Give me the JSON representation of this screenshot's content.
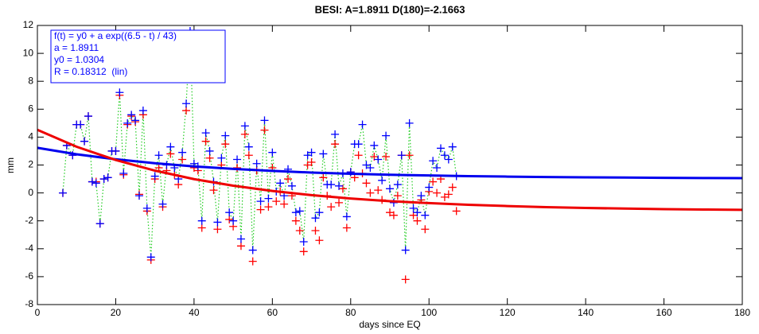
{
  "chart_data": {
    "type": "scatter",
    "title": "BESI: A=1.8911  D(180)=-2.1663",
    "x_label": "days since EQ",
    "y_label": "mm",
    "xlim": [
      0,
      180
    ],
    "xticks": [
      0,
      20,
      40,
      60,
      80,
      100,
      120,
      140,
      160,
      180
    ],
    "ylim": [
      -8,
      12
    ],
    "yticks": [
      -8,
      -6,
      -4,
      -2,
      0,
      2,
      4,
      6,
      8,
      10,
      12
    ],
    "connector_color": "#22cc22",
    "x": [
      6.5,
      7.5,
      9,
      10,
      11,
      12,
      13,
      14,
      15,
      16,
      17,
      18,
      19,
      20,
      21,
      22,
      23,
      24,
      25,
      26,
      27,
      28,
      29,
      30,
      31,
      32,
      33,
      34,
      35,
      36,
      37,
      38,
      39,
      40,
      41,
      42,
      43,
      44,
      45,
      46,
      47,
      48,
      49,
      50,
      51,
      52,
      53,
      54,
      55,
      56,
      57,
      58,
      59,
      60,
      61,
      62,
      63,
      64,
      65,
      66,
      67,
      68,
      69,
      70,
      71,
      72,
      73,
      74,
      75,
      76,
      77,
      78,
      79,
      80,
      81,
      82,
      83,
      84,
      85,
      86,
      87,
      88,
      89,
      90,
      91,
      92,
      93,
      94,
      95,
      96,
      97,
      98,
      99,
      100,
      101,
      102,
      103,
      104,
      105,
      106,
      107
    ],
    "series": [
      {
        "color": "#0000ff",
        "values": [
          0,
          3.4,
          2.7,
          4.9,
          4.9,
          3.7,
          5.5,
          0.8,
          0.7,
          -2.2,
          1.0,
          1.1,
          3.0,
          3.0,
          7.2,
          1.4,
          5.0,
          5.6,
          5.2,
          -0.2,
          5.9,
          -1.1,
          -4.6,
          1.2,
          2.7,
          -0.8,
          2.0,
          3.3,
          1.8,
          1.0,
          2.9,
          6.4,
          11.6,
          2.1,
          1.9,
          -2.0,
          4.3,
          3.0,
          0.8,
          -2.1,
          2.5,
          4.1,
          -1.4,
          -2.0,
          2.4,
          -3.3,
          4.8,
          3.3,
          -4.1,
          2.1,
          -0.6,
          5.2,
          -0.4,
          2.9,
          0.1,
          0.7,
          -0.2,
          1.7,
          0.5,
          -1.4,
          -1.3,
          -3.5,
          2.7,
          2.9,
          -1.8,
          -1.4,
          2.8,
          0.6,
          0.6,
          4.2,
          0.5,
          1.4,
          -1.7,
          1.5,
          3.5,
          3.5,
          4.9,
          2.0,
          1.8,
          3.4,
          2.4,
          0.9,
          4.1,
          0.3,
          -0.7,
          0.6,
          2.7,
          -4.1,
          5.0,
          -1.1,
          -1.4,
          -0.2,
          -1.6,
          0.4,
          2.3,
          1.8,
          3.2,
          2.7,
          2.4,
          3.3,
          1.2
        ]
      },
      {
        "color": "#ff0000",
        "values": [
          0,
          3.4,
          2.7,
          4.9,
          4.9,
          3.7,
          5.5,
          0.8,
          0.8,
          -2.2,
          1.0,
          1.1,
          3.0,
          3.0,
          7.0,
          1.3,
          4.9,
          5.5,
          5.1,
          -0.1,
          5.6,
          -1.3,
          -4.8,
          1.0,
          1.8,
          -1.0,
          1.6,
          2.8,
          1.3,
          0.6,
          2.4,
          5.9,
          11.3,
          1.8,
          1.6,
          -2.5,
          3.7,
          2.5,
          0.2,
          -2.6,
          2.0,
          3.5,
          -1.9,
          -2.4,
          1.8,
          -3.8,
          4.2,
          2.7,
          -4.9,
          1.6,
          -1.2,
          4.5,
          -1.0,
          1.8,
          -0.6,
          0.1,
          -0.8,
          1.0,
          -0.2,
          -2.0,
          -2.7,
          -4.2,
          2.0,
          2.2,
          -2.7,
          -3.4,
          1.1,
          -0.2,
          -1.0,
          3.5,
          -0.7,
          0.3,
          -2.5,
          1.5,
          1.1,
          2.7,
          1.4,
          0.7,
          0.0,
          2.6,
          0.2,
          -0.5,
          2.6,
          -1.4,
          -1.6,
          -0.2,
          2.7,
          -6.2,
          2.7,
          -1.6,
          -2.0,
          -0.5,
          -2.6,
          0.1,
          0.8,
          0.0,
          1.0,
          -0.3,
          -0.1,
          0.4,
          -1.3
        ]
      }
    ],
    "fit_x": [
      0,
      10,
      20,
      30,
      40,
      50,
      60,
      70,
      80,
      90,
      100,
      110,
      120,
      130,
      140,
      150,
      160,
      170,
      180
    ],
    "fits": [
      {
        "color": "#0000ee",
        "values": [
          3.23,
          2.77,
          2.41,
          2.13,
          1.9,
          1.72,
          1.58,
          1.46,
          1.37,
          1.3,
          1.25,
          1.2,
          1.17,
          1.14,
          1.12,
          1.1,
          1.08,
          1.07,
          1.06
        ]
      },
      {
        "color": "#ee0000",
        "values": [
          4.52,
          3.31,
          2.36,
          1.6,
          0.99,
          0.52,
          0.14,
          -0.16,
          -0.4,
          -0.59,
          -0.73,
          -0.85,
          -0.94,
          -1.02,
          -1.08,
          -1.12,
          -1.16,
          -1.19,
          -1.21
        ]
      }
    ],
    "annotation": [
      "f(t) = y0 + a exp((6.5 - t) / 43)",
      "a = 1.8911",
      "y0 = 1.0304",
      "R = 0.18312  (lin)"
    ]
  }
}
